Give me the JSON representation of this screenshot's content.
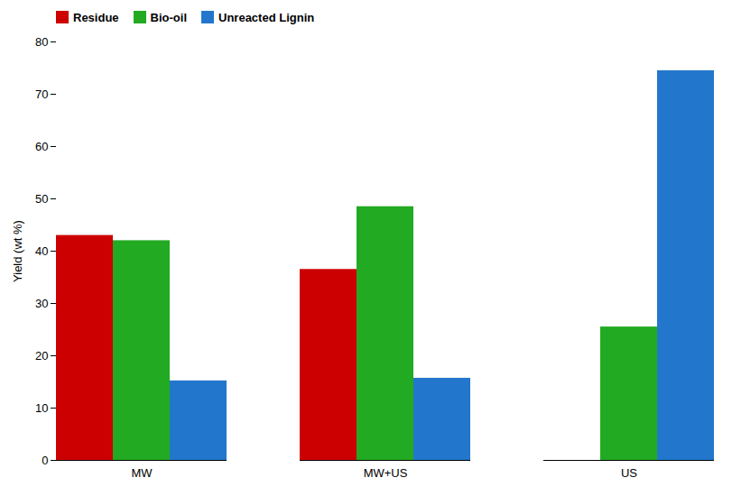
{
  "chart_data": {
    "type": "bar",
    "categories": [
      "MW",
      "MW+US",
      "US"
    ],
    "series": [
      {
        "name": "Residue",
        "values": [
          43.0,
          36.5,
          0.0
        ],
        "color": "#cc0000"
      },
      {
        "name": "Bio-oil",
        "values": [
          42.0,
          48.5,
          25.5
        ],
        "color": "#22aa22"
      },
      {
        "name": "Unreacted Lignin",
        "values": [
          15.2,
          15.7,
          74.5
        ],
        "color": "#2277cc"
      }
    ],
    "ylabel": "Yield (wt %)",
    "ylim": [
      0,
      80
    ],
    "yticks": [
      0,
      10,
      20,
      30,
      40,
      50,
      60,
      70,
      80
    ],
    "grid": false,
    "legend": "upper left"
  }
}
